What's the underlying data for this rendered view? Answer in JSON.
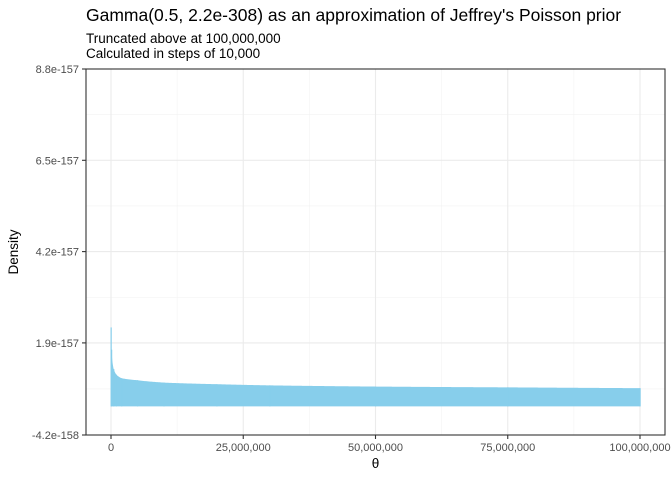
{
  "chart_data": {
    "type": "area",
    "title": "Gamma(0.5, 2.2e-308) as an approximation of Jeffrey's Poisson prior",
    "subtitle_lines": [
      "Truncated above at 100,000,000",
      "Calculated in steps of 10,000"
    ],
    "xlabel": "θ",
    "ylabel": "Density",
    "xlim": [
      0,
      100000000
    ],
    "ylim": [
      -4.2e-158,
      8.8e-157
    ],
    "x_ticks": [
      0,
      25000000,
      50000000,
      75000000,
      100000000
    ],
    "x_tick_labels": [
      "0",
      "25,000,000",
      "50,000,000",
      "75,000,000",
      "100,000,000"
    ],
    "y_ticks": [
      -4.2e-158,
      1.9e-157,
      4.2e-157,
      6.5e-157,
      8.8e-157
    ],
    "y_tick_labels": [
      "-4.2e-158",
      "1.9e-157",
      "4.2e-157",
      "6.5e-157",
      "8.8e-157"
    ],
    "grid": true,
    "fill_color": "#87CEEB",
    "x": [
      10000,
      100000,
      500000,
      1000000,
      2000000,
      5000000,
      10000000,
      20000000,
      30000000,
      50000000,
      75000000,
      100000000
    ],
    "y": [
      2.29e-157,
      1.73e-157,
      1.24e-157,
      1.1e-157,
      1.01e-157,
      9.6e-158,
      9e-158,
      8.6e-158,
      8.3e-158,
      8e-158,
      7.8e-158,
      7.6e-158
    ],
    "baseline": 3e-158
  }
}
